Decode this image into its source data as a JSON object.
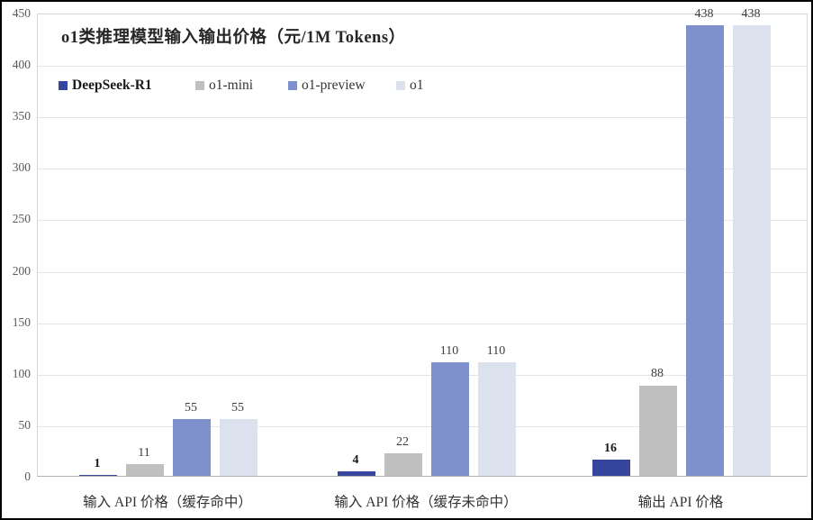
{
  "chart_data": {
    "type": "bar",
    "title": "o1类推理模型输入输出价格（元/1M Tokens）",
    "categories": [
      "输入 API 价格（缓存命中）",
      "输入 API 价格（缓存未命中）",
      "输出 API 价格"
    ],
    "series": [
      {
        "name": "DeepSeek-R1",
        "values": [
          1,
          4,
          16
        ],
        "color": "#36459e",
        "bold_labels": true
      },
      {
        "name": "o1-mini",
        "values": [
          11,
          22,
          88
        ],
        "color": "#bfbfbf",
        "bold_labels": false
      },
      {
        "name": "o1-preview",
        "values": [
          55,
          110,
          438
        ],
        "color": "#7e91cc",
        "bold_labels": false
      },
      {
        "name": "o1",
        "values": [
          55,
          110,
          438
        ],
        "color": "#dbe2ee",
        "bold_labels": false
      }
    ],
    "y_ticks": [
      0,
      50,
      100,
      150,
      200,
      250,
      300,
      350,
      400,
      450
    ],
    "ylim": [
      0,
      450
    ],
    "grid": true,
    "legend_position": "top-left",
    "data_labels": true
  }
}
